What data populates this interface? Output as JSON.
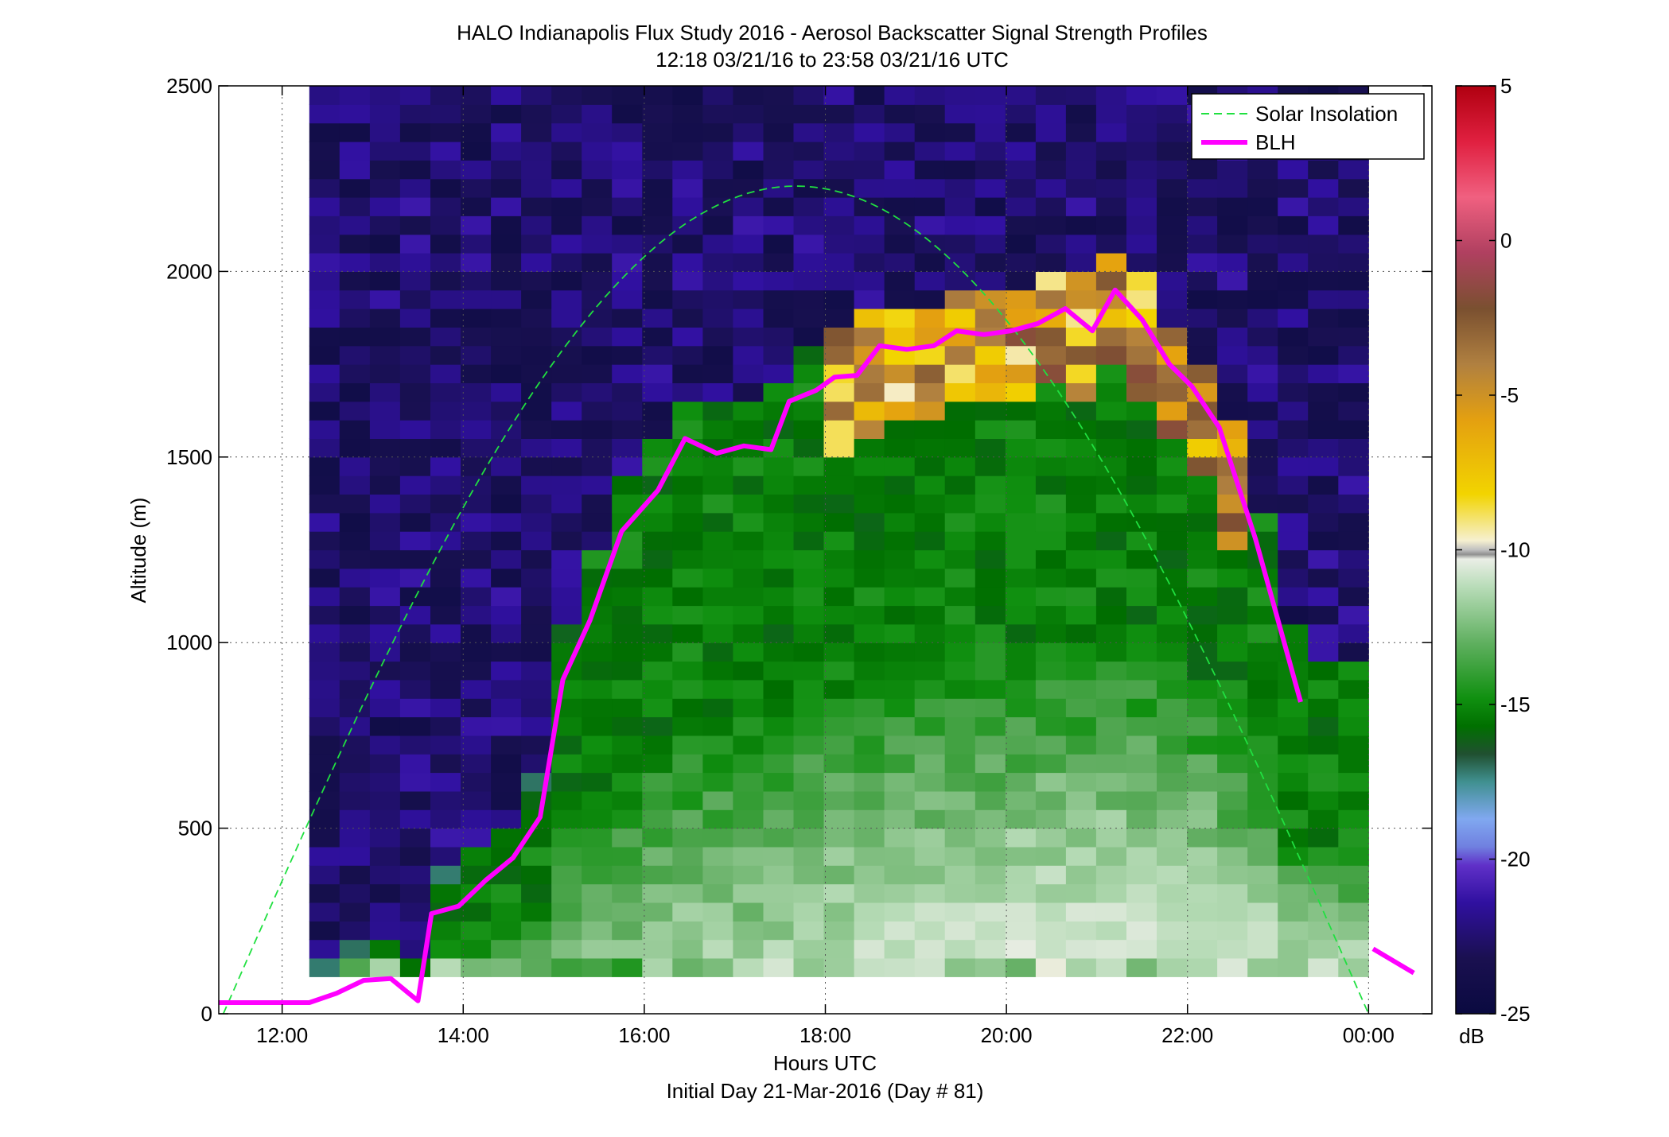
{
  "chart_data": {
    "type": "heatmap",
    "title": "HALO Indianapolis Flux Study 2016 - Aerosol Backscatter Signal Strength Profiles",
    "subtitle": "12:18 03/21/16 to 23:58 03/21/16  UTC",
    "xlabel": "Hours UTC",
    "xlabel2": "Initial Day 21-Mar-2016 (Day # 81)",
    "ylabel": "Altitude (m)",
    "xlim": [
      11.3,
      24.7
    ],
    "ylim": [
      0,
      2500
    ],
    "x_ticks": [
      12,
      14,
      16,
      18,
      20,
      22,
      24
    ],
    "x_tick_labels": [
      "12:00",
      "14:00",
      "16:00",
      "18:00",
      "20:00",
      "22:00",
      "00:00"
    ],
    "y_ticks": [
      0,
      500,
      1000,
      1500,
      2000,
      2500
    ],
    "y_tick_labels": [
      "0",
      "500",
      "1000",
      "1500",
      "2000",
      "2500"
    ],
    "grid": true,
    "legend": {
      "position": "top-right",
      "entries": [
        "Solar Insolation",
        "BLH"
      ]
    },
    "colorbar": {
      "label": "dB",
      "range": [
        -25,
        5
      ],
      "ticks": [
        5,
        0,
        -5,
        -10,
        -15,
        -20,
        -25
      ],
      "tick_labels": [
        "5",
        "0",
        "-5",
        "-10",
        "-15",
        "-20",
        "-25"
      ]
    },
    "heatmap": {
      "x_start": 12.3,
      "x_end": 24.0,
      "ncols": 35,
      "y_start": 100,
      "row_height": 50,
      "nrows": 48
    },
    "series": [
      {
        "name": "BLH",
        "color": "#ff00ff",
        "segments": [
          [
            [
              11.3,
              30
            ],
            [
              12.0,
              30
            ],
            [
              12.3,
              30
            ],
            [
              12.6,
              55
            ],
            [
              12.9,
              90
            ],
            [
              13.2,
              95
            ],
            [
              13.5,
              35
            ],
            [
              13.65,
              270
            ],
            [
              13.95,
              290
            ],
            [
              14.25,
              360
            ],
            [
              14.55,
              420
            ],
            [
              14.85,
              530
            ],
            [
              15.1,
              900
            ],
            [
              15.4,
              1060
            ],
            [
              15.75,
              1300
            ],
            [
              16.15,
              1410
            ],
            [
              16.45,
              1550
            ],
            [
              16.8,
              1510
            ],
            [
              17.1,
              1530
            ],
            [
              17.4,
              1520
            ],
            [
              17.6,
              1650
            ],
            [
              17.9,
              1680
            ],
            [
              18.1,
              1715
            ],
            [
              18.35,
              1720
            ],
            [
              18.6,
              1800
            ],
            [
              18.9,
              1790
            ],
            [
              19.2,
              1800
            ],
            [
              19.45,
              1840
            ],
            [
              19.75,
              1830
            ],
            [
              20.05,
              1840
            ],
            [
              20.35,
              1860
            ],
            [
              20.65,
              1900
            ],
            [
              20.95,
              1840
            ],
            [
              21.2,
              1950
            ],
            [
              21.5,
              1870
            ],
            [
              21.8,
              1750
            ],
            [
              22.05,
              1690
            ],
            [
              22.35,
              1580
            ],
            [
              22.75,
              1280
            ],
            [
              23.25,
              840
            ]
          ],
          [
            [
              24.05,
              175
            ],
            [
              24.5,
              110
            ]
          ]
        ]
      },
      {
        "name": "Solar Insolation",
        "color": "#20e040",
        "curve": {
          "start": 11.35,
          "end": 24.0,
          "peak": 2230
        }
      }
    ]
  }
}
